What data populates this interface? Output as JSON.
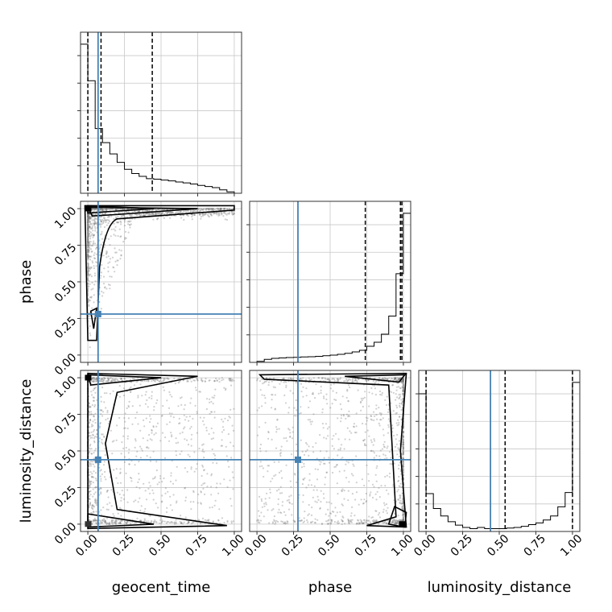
{
  "chart_data": {
    "type": "corner",
    "parameters": [
      "geocent_time",
      "phase",
      "luminosity_distance"
    ],
    "truths": {
      "geocent_time": 0.07,
      "phase": 0.28,
      "luminosity_distance": 0.44
    },
    "truth_color": "#4682b4",
    "ticks": [
      0.0,
      0.25,
      0.5,
      0.75,
      1.0
    ],
    "tick_labels": [
      "0.00",
      "0.25",
      "0.50",
      "0.75",
      "1.00"
    ],
    "axis_range": [
      -0.05,
      1.05
    ],
    "grid": true,
    "histograms": [
      {
        "parameter": "geocent_time",
        "bin_edges": [
          -0.05,
          0.0,
          0.05,
          0.1,
          0.15,
          0.2,
          0.25,
          0.3,
          0.35,
          0.4,
          0.45,
          0.5,
          0.55,
          0.6,
          0.65,
          0.7,
          0.75,
          0.8,
          0.85,
          0.9,
          0.95,
          1.0
        ],
        "counts": [
          5.3,
          4.0,
          2.3,
          1.8,
          1.4,
          1.1,
          0.85,
          0.7,
          0.6,
          0.52,
          0.5,
          0.47,
          0.44,
          0.4,
          0.37,
          0.33,
          0.28,
          0.24,
          0.2,
          0.12,
          0.05
        ],
        "quantiles": [
          0.0,
          0.09,
          0.44
        ]
      },
      {
        "parameter": "phase",
        "bin_edges": [
          0.0,
          0.05,
          0.1,
          0.15,
          0.2,
          0.25,
          0.3,
          0.35,
          0.4,
          0.45,
          0.5,
          0.55,
          0.6,
          0.65,
          0.7,
          0.75,
          0.8,
          0.85,
          0.9,
          0.95,
          1.0,
          1.05
        ],
        "counts": [
          0.05,
          0.15,
          0.2,
          0.22,
          0.24,
          0.25,
          0.27,
          0.28,
          0.3,
          0.33,
          0.36,
          0.4,
          0.45,
          0.52,
          0.6,
          0.8,
          1.0,
          1.4,
          2.3,
          4.4,
          7.4
        ],
        "quantiles": [
          0.74,
          0.98,
          0.99
        ]
      },
      {
        "parameter": "luminosity_distance",
        "bin_edges": [
          -0.05,
          0.0,
          0.05,
          0.1,
          0.15,
          0.2,
          0.25,
          0.3,
          0.35,
          0.4,
          0.45,
          0.5,
          0.55,
          0.6,
          0.65,
          0.7,
          0.75,
          0.8,
          0.85,
          0.9,
          0.95,
          1.0,
          1.05
        ],
        "counts": [
          2.4,
          0.66,
          0.4,
          0.27,
          0.17,
          0.11,
          0.07,
          0.05,
          0.07,
          0.05,
          0.05,
          0.05,
          0.06,
          0.07,
          0.09,
          0.12,
          0.15,
          0.2,
          0.27,
          0.43,
          0.68,
          2.6
        ],
        "quantiles": [
          0.0,
          0.54,
          1.0
        ]
      }
    ],
    "scatter_density": [
      {
        "x": "geocent_time",
        "y": "phase",
        "mode": "high-y-and-low-x"
      },
      {
        "x": "geocent_time",
        "y": "luminosity_distance",
        "mode": "low-x"
      },
      {
        "x": "phase",
        "y": "luminosity_distance",
        "mode": "high-x"
      }
    ]
  }
}
